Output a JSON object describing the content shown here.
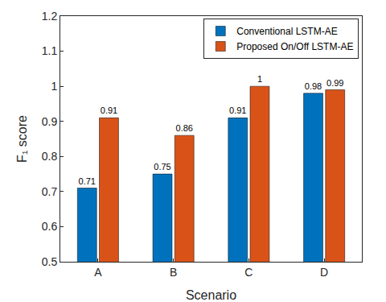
{
  "chart_data": {
    "type": "bar",
    "x_label": "Scenario",
    "y_label": "F₁ score",
    "categories": [
      "A",
      "B",
      "C",
      "D"
    ],
    "series": [
      {
        "name": "Conventional LSTM-AE",
        "color": "#0072BD",
        "values": [
          0.71,
          0.75,
          0.91,
          0.98
        ]
      },
      {
        "name": "Proposed On/Off LSTM-AE",
        "color": "#D95319",
        "values": [
          0.91,
          0.86,
          1,
          0.99
        ]
      }
    ],
    "ylim": [
      0.5,
      1.2
    ],
    "yticks": [
      0.5,
      0.6,
      0.7,
      0.8,
      0.9,
      1,
      1.1,
      1.2
    ],
    "grid": false,
    "legend": "top right",
    "data_labels": true
  }
}
